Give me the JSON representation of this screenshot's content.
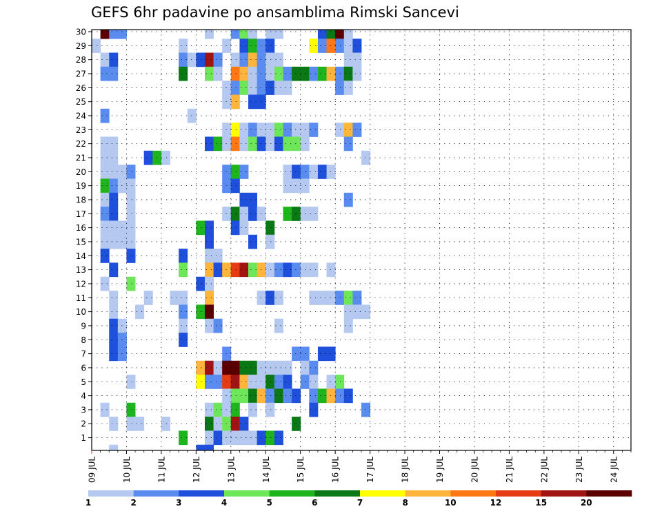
{
  "chart_data": {
    "type": "heatmap",
    "title": "GEFS 6hr padavine po ansamblima Rimski Sancevi",
    "ylabel": "",
    "xlabel": "",
    "y_ticks": [
      "1",
      "2",
      "3",
      "4",
      "5",
      "6",
      "7",
      "8",
      "9",
      "10",
      "11",
      "12",
      "13",
      "14",
      "15",
      "16",
      "17",
      "18",
      "19",
      "20",
      "21",
      "22",
      "23",
      "24",
      "25",
      "26",
      "27",
      "28",
      "29",
      "30"
    ],
    "x_ticks": [
      "09 JUL",
      "10 JUL",
      "11 JUL",
      "12 JUL",
      "13 JUL",
      "14 JUL",
      "15 JUL",
      "16 JUL",
      "17 JUL",
      "18 JUL",
      "19 JUL",
      "20 JUL",
      "21 JUL",
      "22 JUL",
      "23 JUL",
      "24 JUL"
    ],
    "x_steps": 62,
    "members": 30,
    "colorbar": {
      "labels": [
        "1",
        "2",
        "3",
        "4",
        "5",
        "6",
        "7",
        "8",
        "10",
        "12",
        "15",
        "20"
      ],
      "colors": [
        "#b4c8f0",
        "#5a8cf0",
        "#1e50dc",
        "#6ee65a",
        "#1eb41e",
        "#0a7814",
        "#ffff00",
        "#ffb43c",
        "#ff7814",
        "#e63c14",
        "#a01414",
        "#5a0000"
      ]
    },
    "cells": [
      [
        30,
        1,
        11
      ],
      [
        30,
        2,
        1
      ],
      [
        30,
        3,
        1
      ],
      [
        30,
        13,
        0
      ],
      [
        30,
        16,
        1
      ],
      [
        30,
        17,
        3
      ],
      [
        30,
        18,
        0
      ],
      [
        30,
        20,
        0
      ],
      [
        30,
        21,
        0
      ],
      [
        30,
        26,
        2
      ],
      [
        30,
        27,
        5
      ],
      [
        30,
        28,
        11
      ],
      [
        30,
        29,
        0
      ],
      [
        29,
        0,
        0
      ],
      [
        29,
        10,
        0
      ],
      [
        29,
        15,
        0
      ],
      [
        29,
        17,
        2
      ],
      [
        29,
        18,
        4
      ],
      [
        29,
        19,
        1
      ],
      [
        29,
        20,
        2
      ],
      [
        29,
        25,
        6
      ],
      [
        29,
        26,
        1
      ],
      [
        29,
        27,
        8
      ],
      [
        29,
        28,
        1
      ],
      [
        29,
        29,
        0
      ],
      [
        29,
        30,
        2
      ],
      [
        28,
        1,
        0
      ],
      [
        28,
        2,
        2
      ],
      [
        28,
        10,
        1
      ],
      [
        28,
        11,
        0
      ],
      [
        28,
        12,
        2
      ],
      [
        28,
        13,
        10
      ],
      [
        28,
        14,
        1
      ],
      [
        28,
        16,
        0
      ],
      [
        28,
        17,
        1
      ],
      [
        28,
        18,
        7
      ],
      [
        28,
        19,
        1
      ],
      [
        28,
        20,
        0
      ],
      [
        28,
        21,
        0
      ],
      [
        28,
        29,
        0
      ],
      [
        28,
        30,
        0
      ],
      [
        27,
        1,
        1
      ],
      [
        27,
        2,
        1
      ],
      [
        27,
        10,
        5
      ],
      [
        27,
        13,
        3
      ],
      [
        27,
        14,
        0
      ],
      [
        27,
        16,
        8
      ],
      [
        27,
        17,
        7
      ],
      [
        27,
        18,
        0
      ],
      [
        27,
        19,
        1
      ],
      [
        27,
        20,
        0
      ],
      [
        27,
        21,
        3
      ],
      [
        27,
        22,
        1
      ],
      [
        27,
        23,
        5
      ],
      [
        27,
        24,
        5
      ],
      [
        27,
        25,
        1
      ],
      [
        27,
        26,
        4
      ],
      [
        27,
        27,
        7
      ],
      [
        27,
        28,
        1
      ],
      [
        27,
        29,
        5
      ],
      [
        27,
        30,
        0
      ],
      [
        26,
        15,
        0
      ],
      [
        26,
        16,
        1
      ],
      [
        26,
        17,
        3
      ],
      [
        26,
        18,
        0
      ],
      [
        26,
        19,
        1
      ],
      [
        26,
        20,
        2
      ],
      [
        26,
        21,
        0
      ],
      [
        26,
        22,
        0
      ],
      [
        26,
        28,
        1
      ],
      [
        26,
        29,
        0
      ],
      [
        25,
        15,
        0
      ],
      [
        25,
        16,
        7
      ],
      [
        25,
        18,
        2
      ],
      [
        25,
        19,
        2
      ],
      [
        24,
        1,
        1
      ],
      [
        24,
        11,
        0
      ],
      [
        23,
        15,
        0
      ],
      [
        23,
        16,
        6
      ],
      [
        23,
        17,
        0
      ],
      [
        23,
        18,
        1
      ],
      [
        23,
        19,
        0
      ],
      [
        23,
        20,
        0
      ],
      [
        23,
        21,
        3
      ],
      [
        23,
        22,
        1
      ],
      [
        23,
        23,
        0
      ],
      [
        23,
        24,
        0
      ],
      [
        23,
        25,
        1
      ],
      [
        23,
        28,
        0
      ],
      [
        23,
        29,
        7
      ],
      [
        23,
        30,
        1
      ],
      [
        22,
        1,
        0
      ],
      [
        22,
        2,
        0
      ],
      [
        22,
        13,
        2
      ],
      [
        22,
        14,
        4
      ],
      [
        22,
        15,
        0
      ],
      [
        22,
        16,
        8
      ],
      [
        22,
        17,
        0
      ],
      [
        22,
        18,
        3
      ],
      [
        22,
        19,
        2
      ],
      [
        22,
        20,
        0
      ],
      [
        22,
        21,
        2
      ],
      [
        22,
        22,
        3
      ],
      [
        22,
        23,
        3
      ],
      [
        22,
        24,
        0
      ],
      [
        22,
        29,
        1
      ],
      [
        21,
        1,
        0
      ],
      [
        21,
        2,
        0
      ],
      [
        21,
        6,
        2
      ],
      [
        21,
        7,
        4
      ],
      [
        21,
        8,
        0
      ],
      [
        21,
        31,
        0
      ],
      [
        20,
        1,
        0
      ],
      [
        20,
        2,
        0
      ],
      [
        20,
        3,
        0
      ],
      [
        20,
        4,
        1
      ],
      [
        20,
        15,
        1
      ],
      [
        20,
        16,
        4
      ],
      [
        20,
        17,
        1
      ],
      [
        20,
        22,
        0
      ],
      [
        20,
        23,
        2
      ],
      [
        20,
        24,
        1
      ],
      [
        20,
        25,
        0
      ],
      [
        20,
        26,
        2
      ],
      [
        20,
        27,
        0
      ],
      [
        19,
        1,
        4
      ],
      [
        19,
        2,
        1
      ],
      [
        19,
        3,
        0
      ],
      [
        19,
        4,
        0
      ],
      [
        19,
        15,
        1
      ],
      [
        19,
        16,
        2
      ],
      [
        19,
        22,
        0
      ],
      [
        19,
        23,
        0
      ],
      [
        19,
        24,
        0
      ],
      [
        18,
        1,
        0
      ],
      [
        18,
        2,
        2
      ],
      [
        18,
        4,
        0
      ],
      [
        18,
        17,
        2
      ],
      [
        18,
        18,
        2
      ],
      [
        18,
        29,
        1
      ],
      [
        17,
        1,
        1
      ],
      [
        17,
        2,
        2
      ],
      [
        17,
        4,
        0
      ],
      [
        17,
        15,
        0
      ],
      [
        17,
        16,
        5
      ],
      [
        17,
        17,
        0
      ],
      [
        17,
        18,
        2
      ],
      [
        17,
        19,
        0
      ],
      [
        17,
        22,
        4
      ],
      [
        17,
        23,
        5
      ],
      [
        17,
        24,
        0
      ],
      [
        17,
        25,
        0
      ],
      [
        16,
        1,
        0
      ],
      [
        16,
        2,
        0
      ],
      [
        16,
        3,
        0
      ],
      [
        16,
        4,
        0
      ],
      [
        16,
        12,
        4
      ],
      [
        16,
        13,
        2
      ],
      [
        16,
        16,
        2
      ],
      [
        16,
        17,
        0
      ],
      [
        16,
        20,
        5
      ],
      [
        15,
        1,
        0
      ],
      [
        15,
        2,
        0
      ],
      [
        15,
        3,
        0
      ],
      [
        15,
        4,
        0
      ],
      [
        15,
        13,
        2
      ],
      [
        15,
        18,
        2
      ],
      [
        15,
        20,
        0
      ],
      [
        14,
        1,
        2
      ],
      [
        14,
        4,
        2
      ],
      [
        14,
        10,
        2
      ],
      [
        14,
        13,
        0
      ],
      [
        14,
        14,
        0
      ],
      [
        13,
        2,
        2
      ],
      [
        13,
        10,
        3
      ],
      [
        13,
        13,
        7
      ],
      [
        13,
        14,
        2
      ],
      [
        13,
        15,
        7
      ],
      [
        13,
        16,
        9
      ],
      [
        13,
        17,
        10
      ],
      [
        13,
        18,
        3
      ],
      [
        13,
        19,
        7
      ],
      [
        13,
        20,
        0
      ],
      [
        13,
        21,
        1
      ],
      [
        13,
        22,
        2
      ],
      [
        13,
        23,
        1
      ],
      [
        13,
        24,
        0
      ],
      [
        13,
        25,
        0
      ],
      [
        13,
        27,
        0
      ],
      [
        12,
        1,
        0
      ],
      [
        12,
        4,
        3
      ],
      [
        12,
        12,
        2
      ],
      [
        12,
        13,
        0
      ],
      [
        11,
        2,
        0
      ],
      [
        11,
        6,
        0
      ],
      [
        11,
        9,
        0
      ],
      [
        11,
        10,
        0
      ],
      [
        11,
        13,
        7
      ],
      [
        11,
        19,
        0
      ],
      [
        11,
        20,
        2
      ],
      [
        11,
        21,
        0
      ],
      [
        11,
        25,
        0
      ],
      [
        11,
        26,
        0
      ],
      [
        11,
        27,
        0
      ],
      [
        11,
        28,
        1
      ],
      [
        11,
        29,
        3
      ],
      [
        11,
        30,
        1
      ],
      [
        10,
        2,
        0
      ],
      [
        10,
        5,
        0
      ],
      [
        10,
        10,
        1
      ],
      [
        10,
        12,
        4
      ],
      [
        10,
        13,
        11
      ],
      [
        10,
        29,
        0
      ],
      [
        10,
        30,
        0
      ],
      [
        10,
        31,
        0
      ],
      [
        9,
        2,
        2
      ],
      [
        9,
        3,
        0
      ],
      [
        9,
        10,
        0
      ],
      [
        9,
        13,
        0
      ],
      [
        9,
        14,
        1
      ],
      [
        9,
        21,
        0
      ],
      [
        9,
        29,
        0
      ],
      [
        8,
        2,
        2
      ],
      [
        8,
        3,
        1
      ],
      [
        8,
        10,
        2
      ],
      [
        7,
        2,
        2
      ],
      [
        7,
        3,
        1
      ],
      [
        7,
        15,
        1
      ],
      [
        7,
        23,
        1
      ],
      [
        7,
        24,
        1
      ],
      [
        7,
        26,
        2
      ],
      [
        7,
        27,
        2
      ],
      [
        6,
        12,
        7
      ],
      [
        6,
        13,
        10
      ],
      [
        6,
        14,
        0
      ],
      [
        6,
        15,
        11
      ],
      [
        6,
        16,
        11
      ],
      [
        6,
        17,
        5
      ],
      [
        6,
        18,
        5
      ],
      [
        6,
        19,
        0
      ],
      [
        6,
        20,
        0
      ],
      [
        6,
        21,
        0
      ],
      [
        6,
        22,
        0
      ],
      [
        6,
        24,
        0
      ],
      [
        6,
        25,
        1
      ],
      [
        5,
        4,
        0
      ],
      [
        5,
        12,
        6
      ],
      [
        5,
        13,
        1
      ],
      [
        5,
        14,
        1
      ],
      [
        5,
        15,
        9
      ],
      [
        5,
        16,
        10
      ],
      [
        5,
        17,
        7
      ],
      [
        5,
        18,
        0
      ],
      [
        5,
        19,
        0
      ],
      [
        5,
        20,
        5
      ],
      [
        5,
        21,
        1
      ],
      [
        5,
        22,
        2
      ],
      [
        5,
        24,
        1
      ],
      [
        5,
        25,
        0
      ],
      [
        5,
        27,
        0
      ],
      [
        5,
        28,
        3
      ],
      [
        4,
        15,
        0
      ],
      [
        4,
        16,
        3
      ],
      [
        4,
        17,
        3
      ],
      [
        4,
        18,
        5
      ],
      [
        4,
        19,
        7
      ],
      [
        4,
        20,
        1
      ],
      [
        4,
        21,
        5
      ],
      [
        4,
        22,
        1
      ],
      [
        4,
        23,
        2
      ],
      [
        4,
        25,
        1
      ],
      [
        4,
        26,
        4
      ],
      [
        4,
        27,
        7
      ],
      [
        4,
        28,
        1
      ],
      [
        4,
        29,
        2
      ],
      [
        3,
        1,
        0
      ],
      [
        3,
        4,
        4
      ],
      [
        3,
        13,
        0
      ],
      [
        3,
        14,
        3
      ],
      [
        3,
        15,
        0
      ],
      [
        3,
        16,
        4
      ],
      [
        3,
        18,
        0
      ],
      [
        3,
        20,
        0
      ],
      [
        3,
        25,
        2
      ],
      [
        3,
        31,
        1
      ],
      [
        2,
        2,
        0
      ],
      [
        2,
        4,
        0
      ],
      [
        2,
        5,
        0
      ],
      [
        2,
        8,
        0
      ],
      [
        2,
        13,
        5
      ],
      [
        2,
        14,
        0
      ],
      [
        2,
        15,
        3
      ],
      [
        2,
        16,
        10
      ],
      [
        2,
        17,
        2
      ],
      [
        2,
        23,
        5
      ],
      [
        1,
        10,
        4
      ],
      [
        1,
        13,
        0
      ],
      [
        1,
        14,
        2
      ],
      [
        1,
        15,
        0
      ],
      [
        1,
        16,
        0
      ],
      [
        1,
        17,
        0
      ],
      [
        1,
        18,
        0
      ],
      [
        1,
        19,
        2
      ],
      [
        1,
        20,
        4
      ],
      [
        1,
        21,
        2
      ],
      [
        0,
        2,
        0
      ],
      [
        0,
        12,
        2
      ],
      [
        0,
        13,
        2
      ]
    ]
  }
}
